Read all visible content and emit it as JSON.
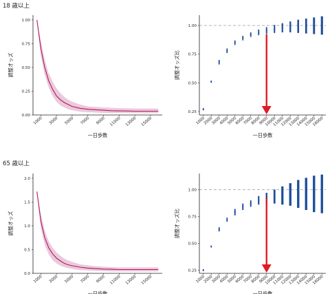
{
  "sections": [
    {
      "title": "18 歳以上"
    },
    {
      "title": "65 歳以上"
    }
  ],
  "colors": {
    "curve": "#b0185f",
    "band": "#e7bfd6",
    "points": "#1f4e9c",
    "reference": "#999999",
    "arrow": "#e01b24"
  },
  "chart_data": [
    {
      "id": "odds-18",
      "type": "line",
      "xlabel": "一日歩数",
      "ylabel": "調整オッズ",
      "xlim": [
        0,
        16500
      ],
      "ylim": [
        0,
        1.05
      ],
      "yticks": [
        0.0,
        0.25,
        0.5,
        0.75,
        1.0
      ],
      "ytick_labels": [
        "0.00",
        "0.25",
        "0.50",
        "0.75",
        "1.00"
      ],
      "xticks": [
        1000,
        3000,
        5000,
        7000,
        9000,
        11000,
        13000,
        15000
      ],
      "x": [
        500,
        1000,
        1500,
        2000,
        2500,
        3000,
        3500,
        4000,
        4500,
        5000,
        6000,
        7000,
        8000,
        9000,
        10000,
        11000,
        12000,
        13000,
        14000,
        15000,
        16000
      ],
      "y": [
        1.0,
        0.7,
        0.5,
        0.36,
        0.27,
        0.2,
        0.16,
        0.13,
        0.11,
        0.09,
        0.07,
        0.06,
        0.055,
        0.05,
        0.045,
        0.043,
        0.042,
        0.04,
        0.04,
        0.04,
        0.04
      ],
      "lower": [
        1.0,
        0.62,
        0.42,
        0.29,
        0.2,
        0.14,
        0.1,
        0.08,
        0.06,
        0.05,
        0.035,
        0.03,
        0.025,
        0.022,
        0.02,
        0.02,
        0.02,
        0.018,
        0.018,
        0.018,
        0.018
      ],
      "upper": [
        1.0,
        0.78,
        0.58,
        0.44,
        0.35,
        0.28,
        0.23,
        0.19,
        0.16,
        0.14,
        0.11,
        0.09,
        0.085,
        0.08,
        0.075,
        0.072,
        0.07,
        0.068,
        0.068,
        0.068,
        0.068
      ]
    },
    {
      "id": "ratio-18",
      "type": "scatter",
      "xlabel": "一日歩数",
      "ylabel": "調整オッズ比",
      "ylim": [
        0.22,
        1.09
      ],
      "yticks": [
        0.25,
        0.5,
        0.75,
        1.0
      ],
      "ytick_labels": [
        "0.25",
        "0.50",
        "0.75",
        "1.00"
      ],
      "reference_line": 1.0,
      "arrow_at": "9000",
      "categories": [
        "1000",
        "2000",
        "3000",
        "4000",
        "5000",
        "6000",
        "7000",
        "8000",
        "9000",
        "10000",
        "11000",
        "12000",
        "13000",
        "14000",
        "15000",
        "16000"
      ],
      "y": [
        0.27,
        0.51,
        0.68,
        0.78,
        0.85,
        0.89,
        0.92,
        0.94,
        0.955,
        0.97,
        0.98,
        0.985,
        0.99,
        0.995,
        1.0,
        1.0
      ],
      "lower": [
        0.26,
        0.5,
        0.66,
        0.76,
        0.83,
        0.87,
        0.9,
        0.915,
        0.925,
        0.935,
        0.94,
        0.94,
        0.935,
        0.93,
        0.925,
        0.92
      ],
      "upper": [
        0.28,
        0.52,
        0.7,
        0.8,
        0.87,
        0.91,
        0.94,
        0.965,
        0.985,
        1.005,
        1.02,
        1.035,
        1.05,
        1.06,
        1.07,
        1.08
      ]
    },
    {
      "id": "odds-65",
      "type": "line",
      "xlabel": "一日歩数",
      "ylabel": "調整オッズ",
      "xlim": [
        0,
        16500
      ],
      "ylim": [
        0,
        2.1
      ],
      "yticks": [
        0.0,
        0.5,
        1.0,
        1.5,
        2.0
      ],
      "ytick_labels": [
        "0.0",
        "0.5",
        "1.0",
        "1.5",
        "2.0"
      ],
      "xticks": [
        1000,
        3000,
        5000,
        7000,
        9000,
        11000,
        13000,
        15000
      ],
      "x": [
        500,
        1000,
        1500,
        2000,
        2500,
        3000,
        3500,
        4000,
        4500,
        5000,
        6000,
        7000,
        8000,
        9000,
        10000,
        11000,
        12000,
        13000,
        14000,
        15000,
        16000
      ],
      "y": [
        1.72,
        1.1,
        0.75,
        0.54,
        0.41,
        0.32,
        0.26,
        0.21,
        0.18,
        0.16,
        0.13,
        0.11,
        0.1,
        0.09,
        0.085,
        0.08,
        0.08,
        0.08,
        0.08,
        0.08,
        0.08
      ],
      "lower": [
        1.72,
        0.95,
        0.6,
        0.4,
        0.28,
        0.21,
        0.16,
        0.13,
        0.11,
        0.09,
        0.07,
        0.06,
        0.05,
        0.045,
        0.04,
        0.04,
        0.04,
        0.04,
        0.04,
        0.04,
        0.04
      ],
      "upper": [
        1.72,
        1.25,
        0.9,
        0.68,
        0.54,
        0.44,
        0.37,
        0.31,
        0.27,
        0.24,
        0.19,
        0.17,
        0.15,
        0.14,
        0.13,
        0.125,
        0.125,
        0.125,
        0.125,
        0.125,
        0.125
      ]
    },
    {
      "id": "ratio-65",
      "type": "scatter",
      "xlabel": "一日歩数",
      "ylabel": "調整オッズ比",
      "ylim": [
        0.22,
        1.15
      ],
      "yticks": [
        0.25,
        0.5,
        0.75,
        1.0
      ],
      "ytick_labels": [
        "0.25",
        "0.50",
        "0.75",
        "1.00"
      ],
      "reference_line": 1.0,
      "arrow_at": "9000",
      "categories": [
        "1000",
        "2000",
        "3000",
        "4000",
        "5000",
        "6000",
        "7000",
        "8000",
        "9000",
        "10000",
        "11000",
        "12000",
        "13000",
        "14000",
        "15000",
        "16000"
      ],
      "y": [
        0.25,
        0.47,
        0.63,
        0.72,
        0.79,
        0.84,
        0.87,
        0.9,
        0.92,
        0.935,
        0.945,
        0.955,
        0.96,
        0.965,
        0.97,
        0.975
      ],
      "lower": [
        0.24,
        0.46,
        0.61,
        0.7,
        0.76,
        0.81,
        0.84,
        0.86,
        0.87,
        0.87,
        0.86,
        0.85,
        0.83,
        0.81,
        0.79,
        0.78
      ],
      "upper": [
        0.26,
        0.48,
        0.65,
        0.74,
        0.82,
        0.87,
        0.9,
        0.94,
        0.97,
        1.0,
        1.03,
        1.06,
        1.09,
        1.11,
        1.13,
        1.14
      ]
    }
  ]
}
